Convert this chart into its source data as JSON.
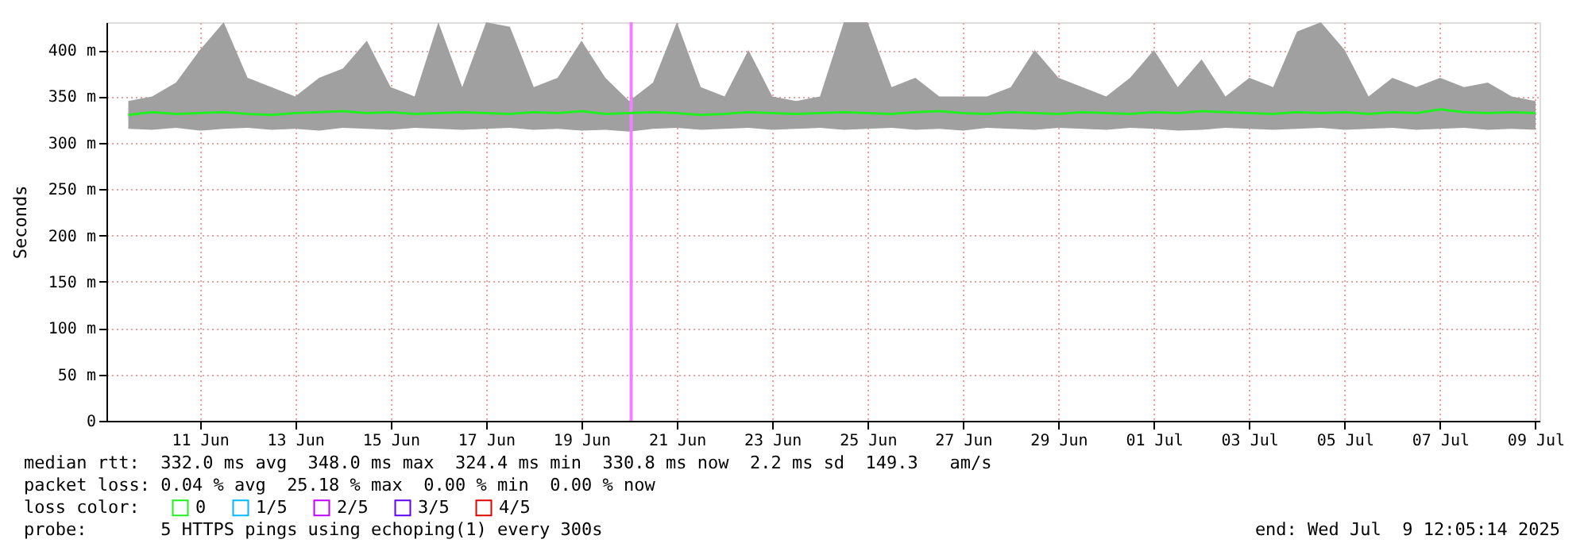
{
  "chart_data": {
    "type": "line",
    "ylabel": "Seconds",
    "xlim": [
      "2025-06-09T01:00",
      "2025-07-09T02:00"
    ],
    "ylim": [
      0,
      430
    ],
    "yticks": [
      0,
      {
        "value": 50,
        "label": "50 m"
      },
      {
        "value": 100,
        "label": "100 m"
      },
      {
        "value": 150,
        "label": "150 m"
      },
      {
        "value": 200,
        "label": "200 m"
      },
      {
        "value": 250,
        "label": "250 m"
      },
      {
        "value": 300,
        "label": "300 m"
      },
      {
        "value": 350,
        "label": "350 m"
      },
      {
        "value": 400,
        "label": "400 m"
      }
    ],
    "xticks": [
      {
        "value": "2025-06-11",
        "label": "11 Jun"
      },
      {
        "value": "2025-06-13",
        "label": "13 Jun"
      },
      {
        "value": "2025-06-15",
        "label": "15 Jun"
      },
      {
        "value": "2025-06-17",
        "label": "17 Jun"
      },
      {
        "value": "2025-06-19",
        "label": "19 Jun"
      },
      {
        "value": "2025-06-21",
        "label": "21 Jun"
      },
      {
        "value": "2025-06-23",
        "label": "23 Jun"
      },
      {
        "value": "2025-06-25",
        "label": "25 Jun"
      },
      {
        "value": "2025-06-27",
        "label": "27 Jun"
      },
      {
        "value": "2025-06-29",
        "label": "29 Jun"
      },
      {
        "value": "2025-07-01",
        "label": "01 Jul"
      },
      {
        "value": "2025-07-03",
        "label": "03 Jul"
      },
      {
        "value": "2025-07-05",
        "label": "05 Jul"
      },
      {
        "value": "2025-07-07",
        "label": "07 Jul"
      },
      {
        "value": "2025-07-09",
        "label": "09 Jul"
      }
    ],
    "grid": true,
    "legend": "bottom left",
    "legend_title": "loss color:",
    "line_style": "solid",
    "marker": "none",
    "ref_lines": [
      {
        "axis": "x",
        "value": "2025-06-20T01:00",
        "color": "#f080ff"
      }
    ],
    "series": [
      {
        "name": "0",
        "color": "#20f020",
        "x": [
          "2025-06-09T12:00",
          "2025-06-10T00:00",
          "2025-06-10T12:00",
          "2025-06-11T00:00",
          "2025-06-11T12:00",
          "2025-06-12T00:00",
          "2025-06-12T12:00",
          "2025-06-13T00:00",
          "2025-06-13T12:00",
          "2025-06-14T00:00",
          "2025-06-14T12:00",
          "2025-06-15T00:00",
          "2025-06-15T12:00",
          "2025-06-16T00:00",
          "2025-06-16T12:00",
          "2025-06-17T00:00",
          "2025-06-17T12:00",
          "2025-06-18T00:00",
          "2025-06-18T12:00",
          "2025-06-19T00:00",
          "2025-06-19T12:00",
          "2025-06-20T00:00",
          "2025-06-20T12:00",
          "2025-06-21T00:00",
          "2025-06-21T12:00",
          "2025-06-22T00:00",
          "2025-06-22T12:00",
          "2025-06-23T00:00",
          "2025-06-23T12:00",
          "2025-06-24T00:00",
          "2025-06-24T12:00",
          "2025-06-25T00:00",
          "2025-06-25T12:00",
          "2025-06-26T00:00",
          "2025-06-26T12:00",
          "2025-06-27T00:00",
          "2025-06-27T12:00",
          "2025-06-28T00:00",
          "2025-06-28T12:00",
          "2025-06-29T00:00",
          "2025-06-29T12:00",
          "2025-06-30T00:00",
          "2025-06-30T12:00",
          "2025-07-01T00:00",
          "2025-07-01T12:00",
          "2025-07-02T00:00",
          "2025-07-02T12:00",
          "2025-07-03T00:00",
          "2025-07-03T12:00",
          "2025-07-04T00:00",
          "2025-07-04T12:00",
          "2025-07-05T00:00",
          "2025-07-05T12:00",
          "2025-07-06T00:00",
          "2025-07-06T12:00",
          "2025-07-07T00:00",
          "2025-07-07T12:00",
          "2025-07-08T00:00",
          "2025-07-08T12:00",
          "2025-07-09T00:00"
        ],
        "values": [
          330,
          333,
          331,
          332,
          333,
          331,
          330,
          332,
          333,
          334,
          332,
          333,
          331,
          332,
          333,
          332,
          331,
          333,
          332,
          334,
          331,
          332,
          333,
          332,
          330,
          331,
          333,
          332,
          331,
          332,
          333,
          332,
          331,
          333,
          334,
          332,
          331,
          333,
          332,
          331,
          333,
          332,
          331,
          333,
          332,
          334,
          333,
          332,
          331,
          333,
          332,
          333,
          331,
          333,
          332,
          336,
          333,
          332,
          333,
          332
        ],
        "lower": [
          315,
          314,
          316,
          313,
          315,
          316,
          314,
          315,
          313,
          316,
          315,
          314,
          316,
          315,
          314,
          315,
          316,
          314,
          315,
          313,
          314,
          312,
          315,
          316,
          314,
          315,
          316,
          314,
          315,
          316,
          314,
          315,
          316,
          314,
          315,
          313,
          316,
          315,
          314,
          316,
          315,
          314,
          316,
          315,
          313,
          314,
          316,
          315,
          314,
          315,
          316,
          314,
          315,
          316,
          314,
          315,
          316,
          314,
          315,
          314
        ],
        "upper": [
          345,
          350,
          365,
          400,
          430,
          370,
          360,
          350,
          370,
          380,
          410,
          360,
          350,
          430,
          360,
          430,
          425,
          360,
          370,
          410,
          370,
          345,
          365,
          430,
          360,
          350,
          400,
          350,
          345,
          350,
          430,
          430,
          360,
          370,
          350,
          350,
          350,
          360,
          400,
          370,
          360,
          350,
          370,
          400,
          360,
          390,
          350,
          370,
          360,
          420,
          430,
          400,
          350,
          370,
          360,
          370,
          360,
          365,
          350,
          345
        ]
      },
      {
        "name": "1/5",
        "color": "#00b8ff"
      },
      {
        "name": "2/5",
        "color": "#c000ff"
      },
      {
        "name": "3/5",
        "color": "#6000ff"
      },
      {
        "name": "4/5",
        "color": "#e00000"
      }
    ],
    "annotations": [
      "median rtt:  332.0 ms avg  348.0 ms max  324.4 ms min  330.8 ms now  2.2 ms sd  149.3   am/s",
      "packet loss: 0.04 % avg  25.18 % max  0.00 % min  0.00 % now",
      "probe:       5 HTTPS pings using echoping(1) every 300s",
      "end: Wed Jul  9 12:05:14 2025"
    ]
  }
}
